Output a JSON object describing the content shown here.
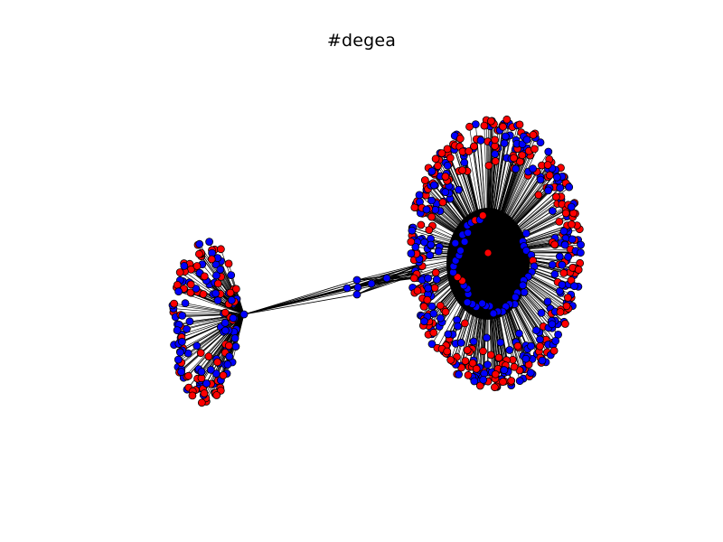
{
  "title": "#degea",
  "colors": {
    "node_red": "#ff0000",
    "node_blue": "#0000ff",
    "edge": "#000000",
    "node_outline": "#000000",
    "background": "#ffffff"
  },
  "graph": {
    "type": "network",
    "clusters": [
      {
        "name": "small-cluster",
        "hub_color": "blue"
      },
      {
        "name": "large-cluster",
        "hub_color": "red"
      }
    ],
    "bridge_node_color": "blue"
  }
}
